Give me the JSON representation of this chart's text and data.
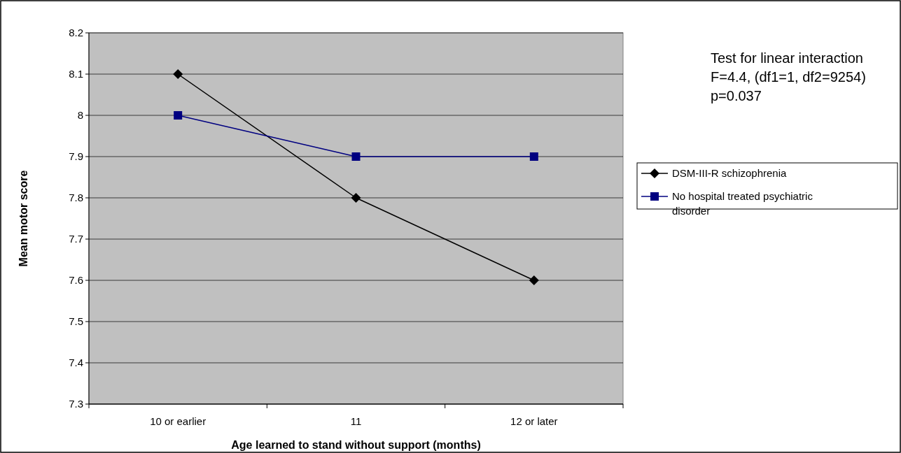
{
  "chart_data": {
    "type": "line",
    "xlabel": "Age learned to stand without support (months)",
    "ylabel": "Mean motor score",
    "categories": [
      "10 or earlier",
      "11",
      "12 or later"
    ],
    "series": [
      {
        "name": "DSM-III-R schizophrenia",
        "color": "#000000",
        "marker": "diamond",
        "values": [
          8.1,
          7.8,
          7.6
        ]
      },
      {
        "name": "No hospital treated psychiatric disorder",
        "color": "#000080",
        "marker": "square",
        "values": [
          8.0,
          7.9,
          7.9
        ]
      }
    ],
    "ylim": [
      7.3,
      8.2
    ],
    "yticks": [
      7.3,
      7.4,
      7.5,
      7.6,
      7.7,
      7.8,
      7.9,
      8,
      8.1,
      8.2
    ],
    "grid": "y",
    "legend": "right",
    "line_style": "solid",
    "annotations": [
      "Test for linear interaction",
      "F=4.4, (df1=1, df2=9254)",
      "p=0.037"
    ]
  }
}
